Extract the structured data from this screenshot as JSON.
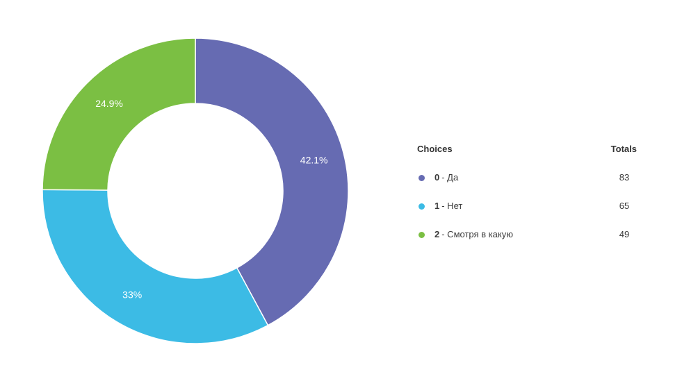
{
  "chart_data": {
    "type": "pie",
    "variant": "donut",
    "categories": [
      "0 - Да",
      "1 - Нет",
      "2 - Смотря в какую"
    ],
    "values": [
      83,
      65,
      49
    ],
    "percent_labels": [
      "42.1%",
      "33%",
      "24.9%"
    ],
    "colors": [
      "#666bb2",
      "#3cbbe5",
      "#7bbf43"
    ],
    "legend_placement": "right"
  },
  "legend": {
    "header_choices": "Choices",
    "header_totals": "Totals",
    "items": [
      {
        "code": "0",
        "label": "- Да",
        "total": "83",
        "color": "#666bb2"
      },
      {
        "code": "1",
        "label": "- Нет",
        "total": "65",
        "color": "#3cbbe5"
      },
      {
        "code": "2",
        "label": "- Смотря в какую",
        "total": "49",
        "color": "#7bbf43"
      }
    ]
  }
}
